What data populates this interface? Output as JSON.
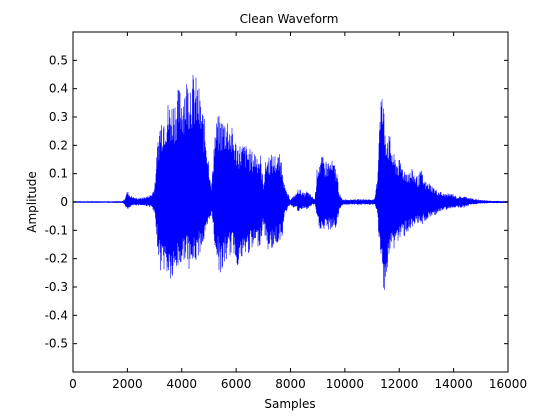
{
  "chart_data": {
    "type": "line",
    "title": "Clean Waveform",
    "xlabel": "Samples",
    "ylabel": "Amplitude",
    "xlim": [
      0,
      16000
    ],
    "ylim": [
      -0.6,
      0.6
    ],
    "xticks": [
      0,
      2000,
      4000,
      6000,
      8000,
      10000,
      12000,
      14000,
      16000
    ],
    "yticks": [
      -0.5,
      -0.4,
      -0.3,
      -0.2,
      -0.1,
      0,
      0.1,
      0.2,
      0.3,
      0.4,
      0.5
    ],
    "grid": false,
    "line_color": "#0000ff",
    "series": [
      {
        "x": [
          0,
          1800,
          1900,
          1950,
          2000,
          2050,
          2100,
          2200,
          2300,
          2500,
          2700,
          2900,
          3000,
          3100,
          3200,
          3300,
          3400,
          3500,
          3600,
          3700,
          3800,
          3900,
          4000,
          4100,
          4200,
          4300,
          4400,
          4500,
          4600,
          4700,
          4800,
          4900,
          5000,
          5100,
          5200,
          5300,
          5400,
          5500,
          5600,
          5700,
          5800,
          5900,
          6000,
          6100,
          6200,
          6300,
          6400,
          6500,
          6600,
          6700,
          6800,
          6900,
          7000,
          7100,
          7200,
          7300,
          7400,
          7500,
          7600,
          7700,
          7800,
          7900,
          8000,
          8100,
          8200,
          8300,
          8400,
          8500,
          8600,
          8700,
          8800,
          8900,
          9000,
          9100,
          9200,
          9300,
          9400,
          9500,
          9600,
          9700,
          9800,
          9900,
          10000,
          10100,
          10200,
          10300,
          10400,
          10500,
          10600,
          10700,
          10800,
          10900,
          11000,
          11100,
          11200,
          11300,
          11400,
          11500,
          11600,
          11700,
          11800,
          11900,
          12000,
          12100,
          12200,
          12300,
          12400,
          12500,
          12600,
          12700,
          12800,
          12900,
          13000,
          13100,
          13200,
          13300,
          13400,
          13500,
          13600,
          13700,
          13800,
          13900,
          14000,
          14100,
          14200,
          14300,
          14400,
          14500,
          14600,
          14800,
          15000,
          15200,
          15400,
          15600,
          15800,
          16000
        ],
        "upper": [
          0.003,
          0.003,
          0.01,
          0.03,
          0.04,
          0.035,
          0.025,
          0.02,
          0.015,
          0.015,
          0.02,
          0.03,
          0.06,
          0.2,
          0.3,
          0.33,
          0.35,
          0.36,
          0.36,
          0.37,
          0.39,
          0.41,
          0.41,
          0.44,
          0.45,
          0.47,
          0.46,
          0.45,
          0.43,
          0.37,
          0.32,
          0.25,
          0.15,
          0.05,
          0.25,
          0.3,
          0.31,
          0.3,
          0.31,
          0.31,
          0.28,
          0.25,
          0.22,
          0.21,
          0.21,
          0.21,
          0.2,
          0.19,
          0.18,
          0.19,
          0.18,
          0.17,
          0.07,
          0.16,
          0.17,
          0.17,
          0.17,
          0.17,
          0.17,
          0.15,
          0.05,
          0.03,
          0.01,
          0.02,
          0.03,
          0.05,
          0.04,
          0.03,
          0.04,
          0.03,
          0.02,
          0.01,
          0.15,
          0.16,
          0.16,
          0.15,
          0.15,
          0.15,
          0.14,
          0.12,
          0.03,
          0.01,
          0.01,
          0.01,
          0.01,
          0.01,
          0.01,
          0.01,
          0.01,
          0.01,
          0.01,
          0.01,
          0.01,
          0.01,
          0.1,
          0.43,
          0.38,
          0.28,
          0.25,
          0.22,
          0.17,
          0.16,
          0.15,
          0.14,
          0.12,
          0.12,
          0.11,
          0.12,
          0.1,
          0.09,
          0.12,
          0.08,
          0.07,
          0.07,
          0.06,
          0.05,
          0.04,
          0.04,
          0.03,
          0.03,
          0.03,
          0.03,
          0.03,
          0.02,
          0.02,
          0.02,
          0.02,
          0.02,
          0.015,
          0.01,
          0.008,
          0.006,
          0.005,
          0.004,
          0.004,
          0.004
        ],
        "lower": [
          -0.003,
          -0.003,
          -0.01,
          -0.02,
          -0.03,
          -0.03,
          -0.02,
          -0.015,
          -0.012,
          -0.012,
          -0.015,
          -0.02,
          -0.05,
          -0.15,
          -0.25,
          -0.23,
          -0.26,
          -0.27,
          -0.29,
          -0.3,
          -0.25,
          -0.24,
          -0.23,
          -0.2,
          -0.21,
          -0.25,
          -0.23,
          -0.22,
          -0.2,
          -0.17,
          -0.15,
          -0.12,
          -0.08,
          -0.04,
          -0.15,
          -0.2,
          -0.26,
          -0.25,
          -0.22,
          -0.2,
          -0.19,
          -0.18,
          -0.22,
          -0.23,
          -0.22,
          -0.2,
          -0.19,
          -0.18,
          -0.18,
          -0.16,
          -0.16,
          -0.15,
          -0.08,
          -0.15,
          -0.18,
          -0.17,
          -0.16,
          -0.15,
          -0.14,
          -0.12,
          -0.05,
          -0.02,
          -0.01,
          -0.02,
          -0.02,
          -0.04,
          -0.03,
          -0.02,
          -0.03,
          -0.02,
          -0.01,
          -0.01,
          -0.08,
          -0.1,
          -0.11,
          -0.1,
          -0.1,
          -0.1,
          -0.1,
          -0.09,
          -0.03,
          -0.01,
          -0.01,
          -0.01,
          -0.01,
          -0.01,
          -0.01,
          -0.01,
          -0.01,
          -0.01,
          -0.01,
          -0.01,
          -0.01,
          -0.01,
          -0.05,
          -0.21,
          -0.3,
          -0.32,
          -0.22,
          -0.18,
          -0.17,
          -0.15,
          -0.14,
          -0.13,
          -0.12,
          -0.11,
          -0.1,
          -0.11,
          -0.09,
          -0.08,
          -0.09,
          -0.07,
          -0.07,
          -0.06,
          -0.05,
          -0.05,
          -0.04,
          -0.04,
          -0.03,
          -0.03,
          -0.03,
          -0.02,
          -0.02,
          -0.02,
          -0.02,
          -0.02,
          -0.02,
          -0.015,
          -0.01,
          -0.008,
          -0.006,
          -0.005,
          -0.004,
          -0.004,
          -0.004,
          -0.004
        ]
      }
    ]
  }
}
